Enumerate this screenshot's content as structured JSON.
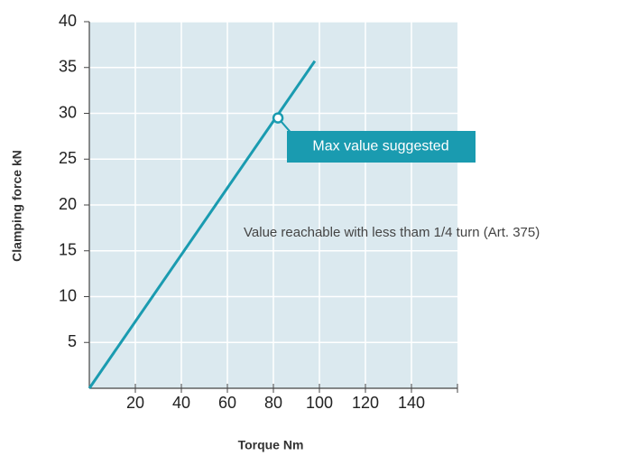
{
  "chart_data": {
    "type": "line",
    "x_label": "Torque Nm",
    "y_label": "Clamping force kN",
    "xlim": [
      0,
      160
    ],
    "xticks": [
      20,
      40,
      60,
      80,
      100,
      120,
      140
    ],
    "ylim": [
      0,
      40
    ],
    "yticks": [
      5,
      10,
      15,
      20,
      25,
      30,
      35,
      40
    ],
    "grid": true,
    "series": [
      {
        "color": "#1a9bb0",
        "x": [
          0,
          98
        ],
        "values": [
          0,
          35.7
        ]
      }
    ],
    "highlight": {
      "x": 82,
      "y": 29.5,
      "label": "Max value suggested"
    },
    "annotations": [
      "Value reachable with less tham 1/4 turn (Art. 375)"
    ]
  }
}
